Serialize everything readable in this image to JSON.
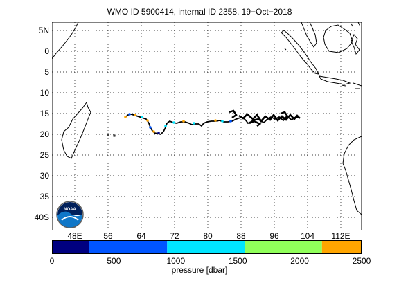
{
  "title": "WMO ID 5900414, internal ID 2358, 19−Oct−2018",
  "map": {
    "lat_labels": [
      "5N",
      "0",
      "5",
      "10",
      "15",
      "20",
      "25",
      "30",
      "35",
      "40S"
    ],
    "lon_labels": [
      "48E",
      "56",
      "64",
      "72",
      "80",
      "88",
      "96",
      "104",
      "112E"
    ],
    "lat_range": [
      5,
      -41
    ],
    "lon_range": [
      44,
      118
    ],
    "grid": true,
    "grid_style": "dotted",
    "land_outline_color": "#000000",
    "track_color": "#000000",
    "logo_text": "NOAA"
  },
  "colorbar": {
    "title": "pressure [dbar]",
    "tick_labels": [
      "0",
      "500",
      "1000",
      "1500",
      "2000",
      "2500"
    ],
    "range": [
      0,
      2500
    ],
    "segments": [
      {
        "from": 0,
        "to": 300,
        "color": "#000080"
      },
      {
        "from": 300,
        "to": 930,
        "color": "#0055ff"
      },
      {
        "from": 930,
        "to": 1560,
        "color": "#00e5ff"
      },
      {
        "from": 1560,
        "to": 2180,
        "color": "#90ff5a"
      },
      {
        "from": 2180,
        "to": 2500,
        "color": "#ffa500"
      }
    ]
  }
}
